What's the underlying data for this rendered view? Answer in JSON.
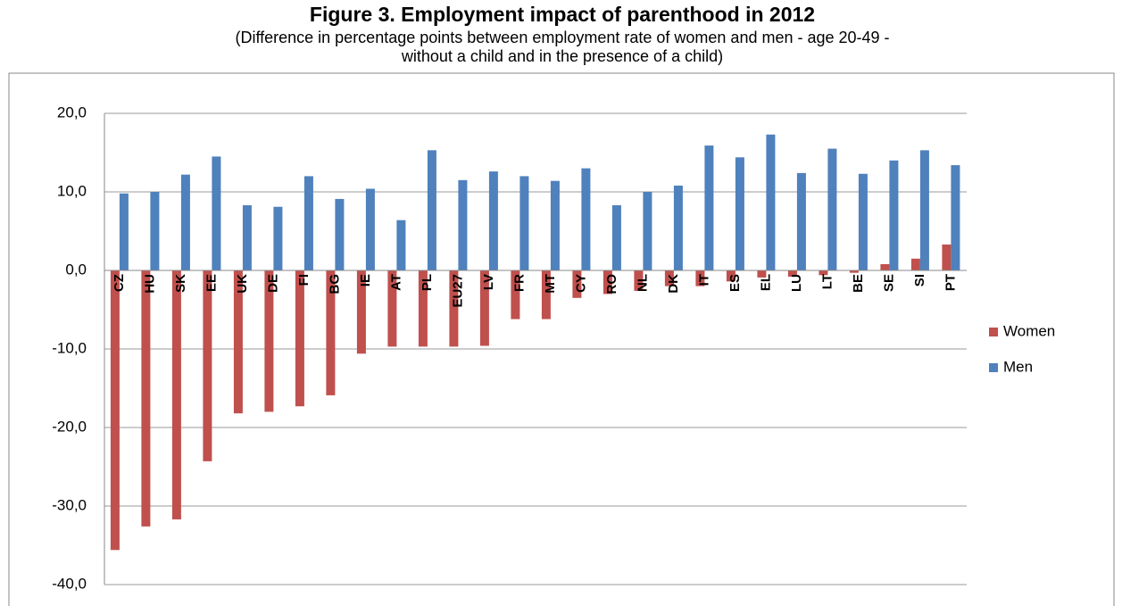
{
  "chart_data": {
    "type": "bar",
    "title": "Figure 3. Employment impact of parenthood in 2012",
    "subtitle": [
      "(Difference in percentage points between employment rate of women and men - age 20-49 -",
      "without a child and in the presence of a child)"
    ],
    "categories": [
      "CZ",
      "HU",
      "SK",
      "EE",
      "UK",
      "DE",
      "FI",
      "BG",
      "IE",
      "AT",
      "PL",
      "EU27",
      "LV",
      "FR",
      "MT",
      "CY",
      "RO",
      "NL",
      "DK",
      "IT",
      "ES",
      "EL",
      "LU",
      "LT",
      "BE",
      "SE",
      "SI",
      "PT"
    ],
    "series": [
      {
        "name": "Women",
        "color": "#c0504d",
        "values": [
          -35.6,
          -32.6,
          -31.7,
          -24.3,
          -18.2,
          -18.0,
          -17.3,
          -15.9,
          -10.6,
          -9.7,
          -9.7,
          -9.7,
          -9.6,
          -6.2,
          -6.2,
          -3.5,
          -3.0,
          -2.6,
          -2.0,
          -2.0,
          -1.4,
          -0.9,
          -0.8,
          -0.6,
          -0.3,
          0.8,
          1.5,
          3.3
        ]
      },
      {
        "name": "Men",
        "color": "#4f81bd",
        "values": [
          9.8,
          10.0,
          12.2,
          14.5,
          8.3,
          8.1,
          12.0,
          9.1,
          10.4,
          6.4,
          15.3,
          11.5,
          12.6,
          12.0,
          11.4,
          13.0,
          8.3,
          10.0,
          10.8,
          15.9,
          14.4,
          17.3,
          12.4,
          15.5,
          12.3,
          14.0,
          15.3,
          13.4
        ]
      }
    ],
    "ylim": [
      -40,
      20
    ],
    "yticks": [
      {
        "value": -40,
        "label": "-40,0"
      },
      {
        "value": -30,
        "label": "-30,0"
      },
      {
        "value": -20,
        "label": "-20,0"
      },
      {
        "value": -10,
        "label": "-10,0"
      },
      {
        "value": 0,
        "label": "0,0"
      },
      {
        "value": 10,
        "label": "10,0"
      },
      {
        "value": 20,
        "label": "20,0"
      }
    ],
    "grid": true,
    "legend": "right"
  }
}
